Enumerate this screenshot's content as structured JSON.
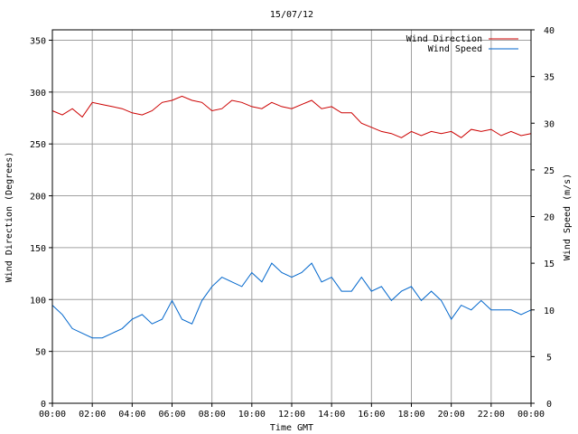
{
  "chart_data": {
    "type": "line",
    "title": "15/07/12",
    "xlabel": "Time GMT",
    "ylabel_left": "Wind Direction (Degrees)",
    "ylabel_right": "Wind Speed (m/s)",
    "x_ticks": [
      "00:00",
      "02:00",
      "04:00",
      "06:00",
      "08:00",
      "10:00",
      "12:00",
      "14:00",
      "16:00",
      "18:00",
      "20:00",
      "22:00",
      "00:00"
    ],
    "y_left_ticks": [
      "0",
      "50",
      "100",
      "150",
      "200",
      "250",
      "300",
      "350"
    ],
    "y_right_ticks": [
      "0",
      "5",
      "10",
      "15",
      "20",
      "25",
      "30",
      "35",
      "40"
    ],
    "y_left_range": [
      0,
      360
    ],
    "y_right_range": [
      0,
      40
    ],
    "x_range_hours": [
      0,
      24
    ],
    "grid": true,
    "legend_position": "top-right",
    "colors": {
      "direction": "#cc0000",
      "speed": "#0066cc",
      "grid": "#a0a0a0"
    },
    "series": [
      {
        "name": "Wind Direction",
        "axis": "left",
        "color": "#cc0000",
        "x_hours": [
          0,
          0.5,
          1,
          1.5,
          2,
          2.5,
          3,
          3.5,
          4,
          4.5,
          5,
          5.5,
          6,
          6.5,
          7,
          7.5,
          8,
          8.5,
          9,
          9.5,
          10,
          10.5,
          11,
          11.5,
          12,
          12.5,
          13,
          13.5,
          14,
          14.5,
          15,
          15.5,
          16,
          16.5,
          17,
          17.5,
          18,
          18.5,
          19,
          19.5,
          20,
          20.5,
          21,
          21.5,
          22,
          22.5,
          23,
          23.5,
          24
        ],
        "values": [
          282,
          278,
          284,
          276,
          290,
          288,
          286,
          284,
          280,
          278,
          282,
          290,
          292,
          296,
          292,
          290,
          282,
          284,
          292,
          290,
          286,
          284,
          290,
          286,
          284,
          288,
          292,
          284,
          286,
          280,
          280,
          270,
          266,
          262,
          260,
          256,
          262,
          258,
          262,
          260,
          262,
          256,
          264,
          262,
          264,
          258,
          262,
          258,
          260
        ]
      },
      {
        "name": "Wind Speed",
        "axis": "right",
        "color": "#0066cc",
        "x_hours": [
          0,
          0.5,
          1,
          1.5,
          2,
          2.5,
          3,
          3.5,
          4,
          4.5,
          5,
          5.5,
          6,
          6.5,
          7,
          7.5,
          8,
          8.5,
          9,
          9.5,
          10,
          10.5,
          11,
          11.5,
          12,
          12.5,
          13,
          13.5,
          14,
          14.5,
          15,
          15.5,
          16,
          16.5,
          17,
          17.5,
          18,
          18.5,
          19,
          19.5,
          20,
          20.5,
          21,
          21.5,
          22,
          22.5,
          23,
          23.5,
          24
        ],
        "values": [
          10.5,
          9.5,
          8,
          7.5,
          7,
          7,
          7.5,
          8,
          9,
          9.5,
          8.5,
          9,
          11,
          9,
          8.5,
          11,
          12.5,
          13.5,
          13,
          12.5,
          14,
          13,
          15,
          14,
          13.5,
          14,
          15,
          13,
          13.5,
          12,
          12,
          13.5,
          12,
          12.5,
          11,
          12,
          12.5,
          11,
          12,
          11,
          9,
          10.5,
          10,
          11,
          10,
          10,
          10,
          9.5,
          10
        ]
      }
    ]
  }
}
